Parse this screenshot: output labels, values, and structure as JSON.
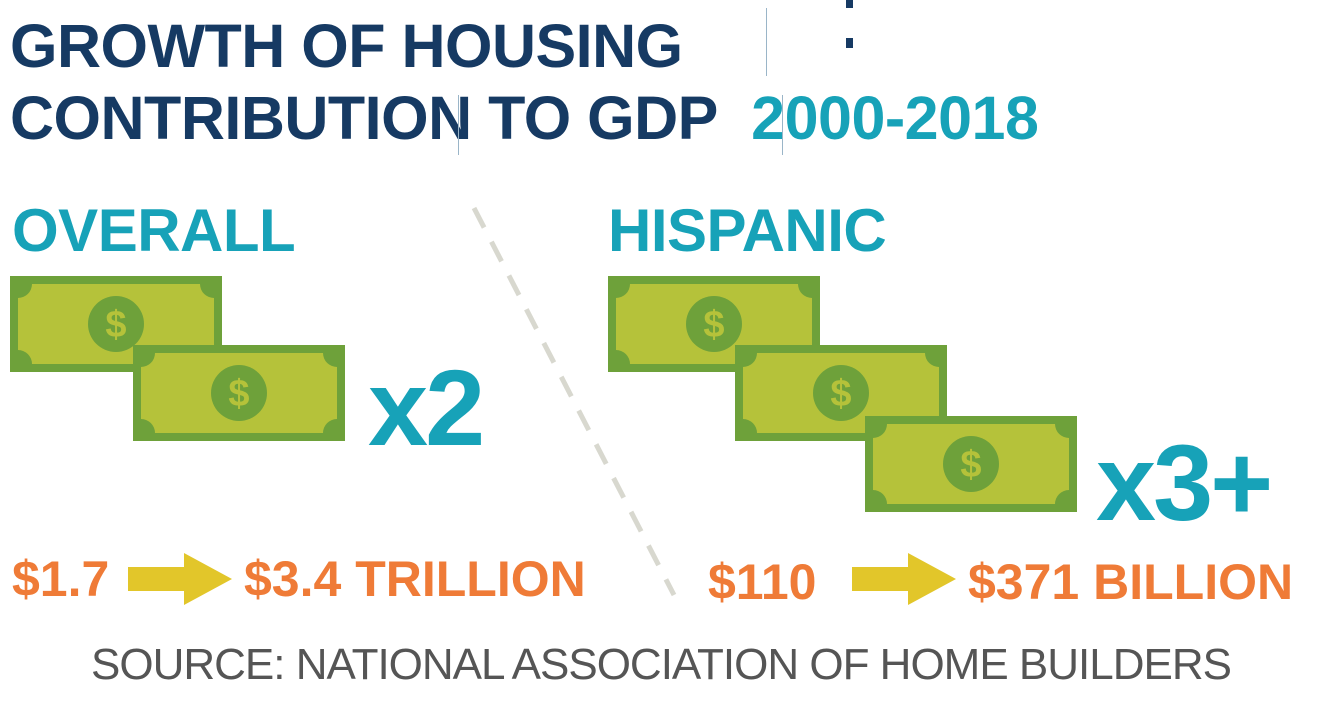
{
  "title": {
    "line1": "GROWTH OF HOUSING",
    "line2": "CONTRIBUTION TO GDP",
    "years": "2000-2018"
  },
  "overall": {
    "heading": "OVERALL",
    "multiplier": "x2",
    "from": "$1.7",
    "to": "$3.4 TRILLION"
  },
  "hispanic": {
    "heading": "HISPANIC",
    "multiplier": "x3+",
    "from": "$110",
    "to": "$371 BILLION"
  },
  "source": "SOURCE: NATIONAL ASSOCIATION OF HOME BUILDERS",
  "colors": {
    "title_navy": "#163a63",
    "accent_teal": "#17a2b8",
    "value_orange": "#ef7b37",
    "arrow_yellow": "#e2c62a",
    "bill_green": "#6ea13a",
    "bill_light": "#b5c23a"
  },
  "icons": [
    "dollar-bill-icon",
    "arrow-right-icon"
  ]
}
